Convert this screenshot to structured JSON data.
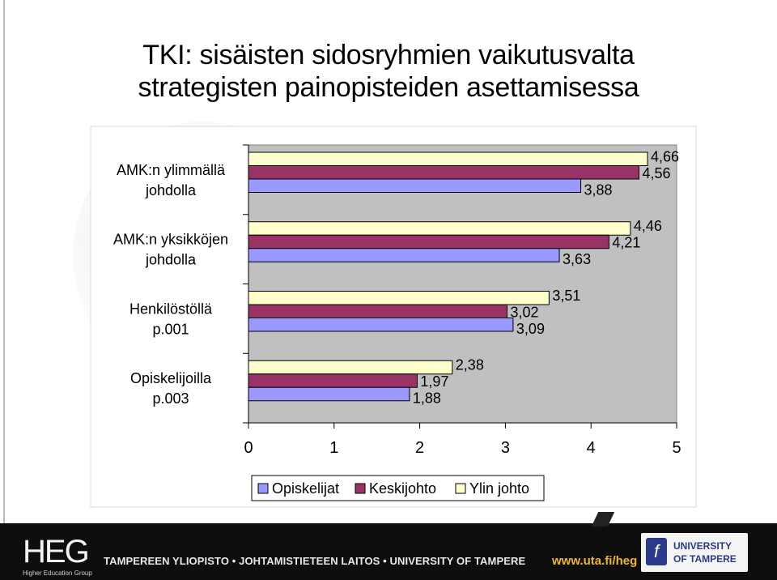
{
  "slide": {
    "title_line1": "TKI: sisäisten sidosryhmien vaikutusvalta",
    "title_line2": "strategisten painopisteiden asettamisessa"
  },
  "chart_data": {
    "type": "bar",
    "orientation": "horizontal",
    "categories": [
      [
        "AMK:n ylimmällä",
        "johdolla"
      ],
      [
        "AMK:n yksikköjen",
        "johdolla"
      ],
      [
        "Henkilöstöllä",
        "p.001"
      ],
      [
        "Opiskelijoilla",
        "p.003"
      ]
    ],
    "series": [
      {
        "name": "Opiskelijat",
        "color": "#9999ff",
        "values": [
          3.88,
          3.63,
          3.09,
          1.88
        ],
        "labels": [
          "3,88",
          "3,63",
          "3,09",
          "1,88"
        ]
      },
      {
        "name": "Keskijohto",
        "color": "#993366",
        "values": [
          4.56,
          4.21,
          3.02,
          1.97
        ],
        "labels": [
          "4,56",
          "4,21",
          "3,02",
          "1,97"
        ]
      },
      {
        "name": "Ylin johto",
        "color": "#ffffcc",
        "values": [
          4.66,
          4.46,
          3.51,
          2.38
        ],
        "labels": [
          "4,66",
          "4,46",
          "3,51",
          "2,38"
        ]
      }
    ],
    "xlim": [
      0,
      5
    ],
    "xticks": [
      "0",
      "1",
      "2",
      "3",
      "4",
      "5"
    ],
    "plot_background": "#c0c0c0",
    "grid": false,
    "legend": "bottom"
  },
  "footer": {
    "logo_text": "HEG",
    "logo_sub": "Higher Education Group",
    "institution_line": "TAMPEREEN YLIOPISTO • JOHTAMISTIETEEN LAITOS • UNIVERSITY OF TAMPERE",
    "url": "www.uta.fi/heg",
    "university_line1": "UNIVERSITY",
    "university_line2": "OF TAMPERE"
  }
}
